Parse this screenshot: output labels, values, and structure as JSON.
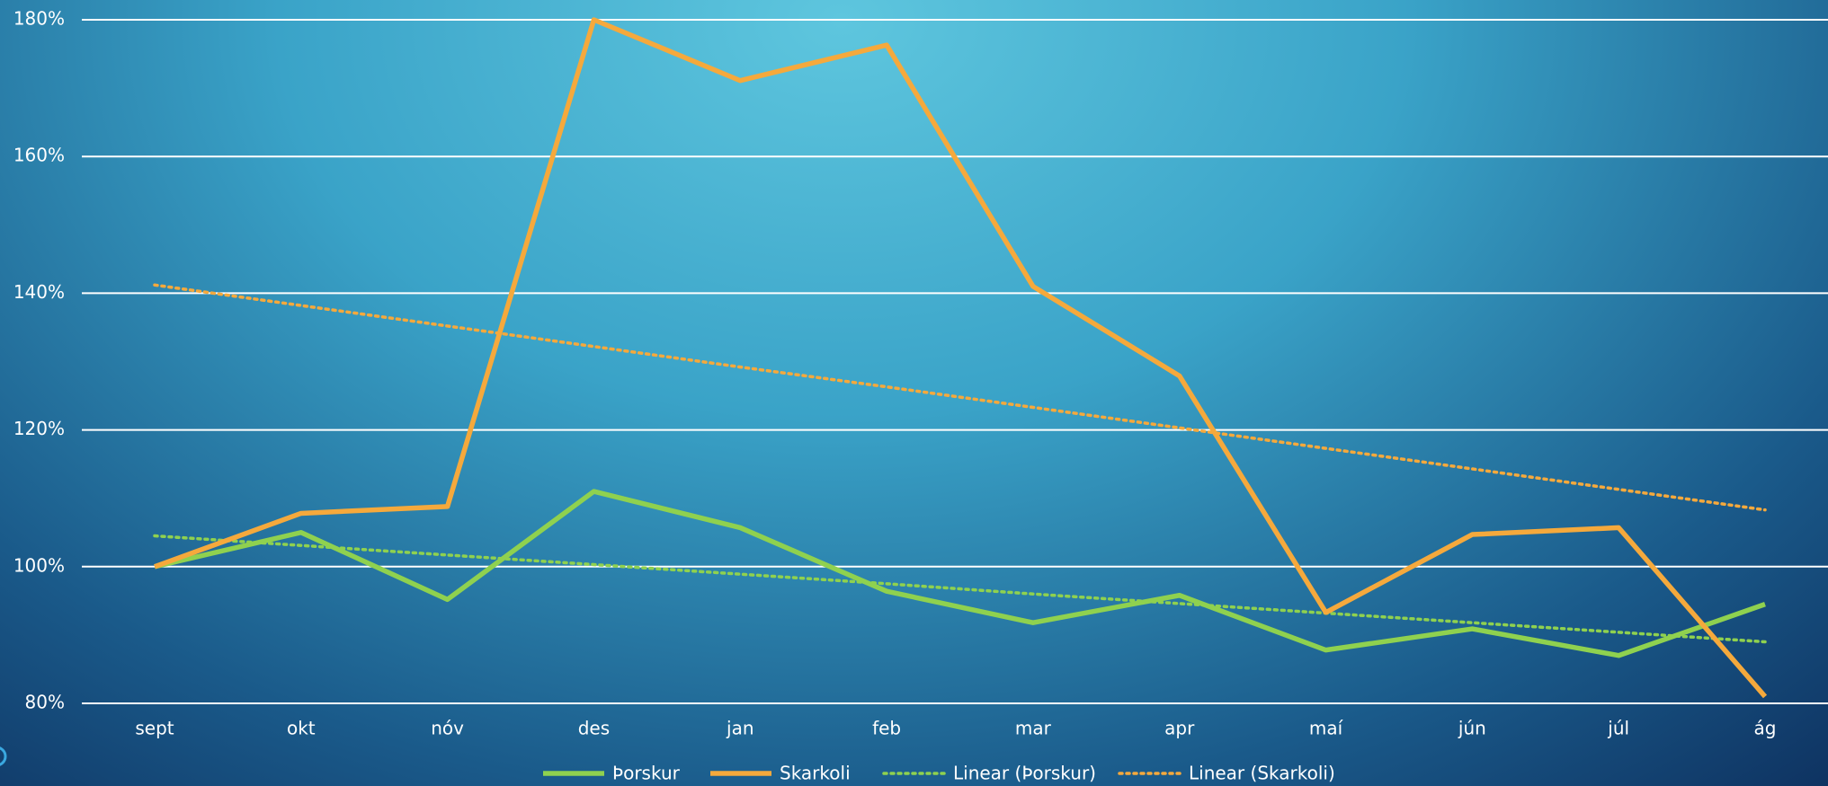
{
  "chart_data": {
    "type": "line",
    "categories": [
      "sept",
      "okt",
      "nóv",
      "des",
      "jan",
      "feb",
      "mar",
      "apr",
      "maí",
      "jún",
      "júl",
      "ág"
    ],
    "series": [
      {
        "name": "Þorskur",
        "color": "#8fd14f",
        "dash": false,
        "values": [
          100,
          105,
          95.2,
          111,
          105.7,
          96.4,
          91.8,
          95.8,
          87.8,
          90.9,
          87,
          94.5
        ]
      },
      {
        "name": "Skarkoli",
        "color": "#f5a93c",
        "dash": false,
        "values": [
          100,
          107.8,
          108.8,
          180,
          171.1,
          176.3,
          141,
          127.9,
          93.3,
          104.7,
          105.7,
          81
        ]
      },
      {
        "name": "Linear (Þorskur)",
        "color": "#8fd14f",
        "dash": true,
        "values": [
          104.5,
          103.1,
          101.7,
          100.3,
          98.9,
          97.5,
          96,
          94.6,
          93.2,
          91.8,
          90.4,
          89
        ]
      },
      {
        "name": "Linear (Skarkoli)",
        "color": "#f5a93c",
        "dash": true,
        "values": [
          141.2,
          138.2,
          135.2,
          132.2,
          129.2,
          126.3,
          123.3,
          120.3,
          117.3,
          114.3,
          111.3,
          108.3
        ]
      }
    ],
    "ylim": [
      80,
      180
    ],
    "yticks": [
      {
        "value": 80,
        "label": "80%"
      },
      {
        "value": 100,
        "label": "100%"
      },
      {
        "value": 120,
        "label": "120%"
      },
      {
        "value": 140,
        "label": "140%"
      },
      {
        "value": 160,
        "label": "160%"
      },
      {
        "value": 180,
        "label": "180%"
      }
    ],
    "grid": true,
    "legend": "bottom"
  }
}
